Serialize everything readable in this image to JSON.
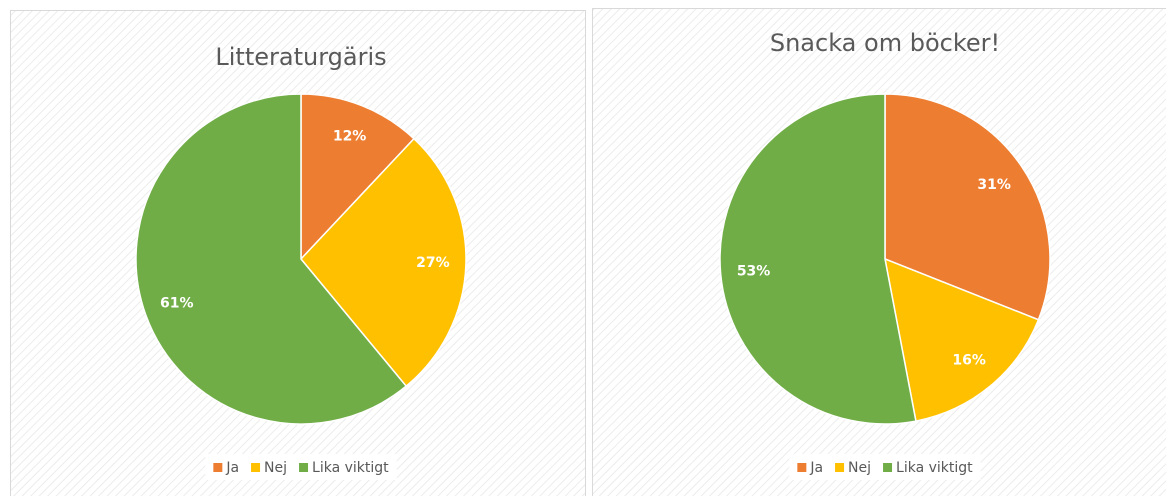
{
  "chart_data": [
    {
      "type": "pie",
      "title": "Litteraturgäris",
      "categories": [
        "Ja",
        "Nej",
        "Lika viktigt"
      ],
      "values": [
        12,
        27,
        61
      ],
      "value_labels": [
        "12%",
        "27%",
        "61%"
      ],
      "colors": [
        "#ED7D31",
        "#FFC000",
        "#70AD47"
      ],
      "legend": "bottom"
    },
    {
      "type": "pie",
      "title": "Snacka om böcker!",
      "categories": [
        "Ja",
        "Nej",
        "Lika viktigt"
      ],
      "values": [
        31,
        16,
        53
      ],
      "value_labels": [
        "31%",
        "16%",
        "53%"
      ],
      "colors": [
        "#ED7D31",
        "#FFC000",
        "#70AD47"
      ],
      "legend": "bottom"
    }
  ]
}
